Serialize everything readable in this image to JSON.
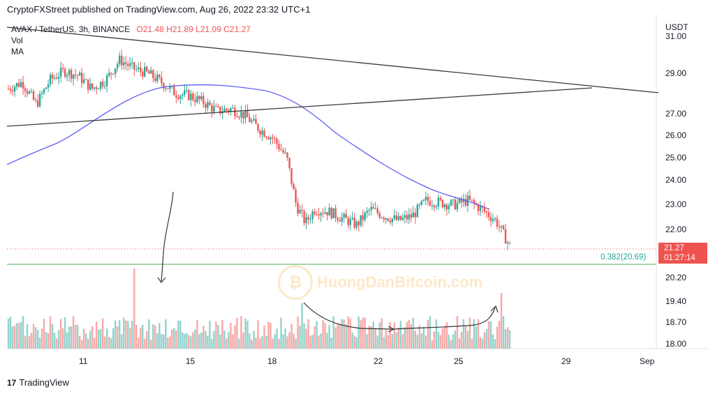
{
  "header": {
    "published": "CryptoFXStreet published on TradingView.com, Aug 26, 2022 23:32 UTC+1"
  },
  "legend": {
    "symbol": "AVAX / TetherUS, 3h, BINANCE",
    "open": "O21.48",
    "high": "H21.89",
    "low": "L21.09",
    "close": "C21.27",
    "vol": "Vol",
    "ma": "MA"
  },
  "axis": {
    "currency": "USDT",
    "price_labels": [
      "31.00",
      "29.00",
      "27.00",
      "26.00",
      "25.00",
      "24.00",
      "23.00",
      "22.00",
      "20.20",
      "19.40",
      "18.70",
      "18.00"
    ],
    "date_labels": [
      "11",
      "15",
      "18",
      "22",
      "25",
      "29",
      "Sep"
    ]
  },
  "price_tag": {
    "price": "21.27",
    "countdown": "01:27:14"
  },
  "fib": {
    "label": "0.382(20.69)"
  },
  "watermark": {
    "text": "HuongDanBitcoin.com"
  },
  "brand": {
    "name": "TradingView",
    "logo": "17"
  },
  "colors": {
    "up": "#26a69a",
    "down": "#ef5350",
    "ma": "#5b5ef4",
    "trend": "#131722",
    "fib": "#4caf50"
  },
  "chart_data": {
    "type": "candlestick",
    "symbol": "AVAX / TetherUS",
    "interval": "3h",
    "exchange": "BINANCE",
    "ylim": [
      18.0,
      31.0
    ],
    "y_ticks": [
      22,
      23,
      24,
      25,
      26,
      27,
      29
    ],
    "x_ticks": [
      "11",
      "15",
      "18",
      "22",
      "25",
      "29",
      "Sep"
    ],
    "current_price": 21.27,
    "fib_0382": 20.69,
    "ohlc_last": {
      "open": 21.48,
      "high": 21.89,
      "low": 21.09,
      "close": 21.27
    },
    "close_path": [
      {
        "x": 0,
        "close": 28.3
      },
      {
        "x": 3,
        "close": 28.6
      },
      {
        "x": 6,
        "close": 27.6
      },
      {
        "x": 9,
        "close": 28.7
      },
      {
        "x": 12,
        "close": 29.1
      },
      {
        "x": 15,
        "close": 28.9
      },
      {
        "x": 18,
        "close": 28.3
      },
      {
        "x": 21,
        "close": 28.7
      },
      {
        "x": 24,
        "close": 29.6
      },
      {
        "x": 27,
        "close": 29.2
      },
      {
        "x": 30,
        "close": 29.0
      },
      {
        "x": 33,
        "close": 28.6
      },
      {
        "x": 36,
        "close": 28.1
      },
      {
        "x": 39,
        "close": 28.0
      },
      {
        "x": 42,
        "close": 27.7
      },
      {
        "x": 45,
        "close": 27.3
      },
      {
        "x": 48,
        "close": 27.4
      },
      {
        "x": 51,
        "close": 27.1
      },
      {
        "x": 54,
        "close": 26.5
      },
      {
        "x": 57,
        "close": 26.1
      },
      {
        "x": 60,
        "close": 25.2
      },
      {
        "x": 62,
        "close": 23.1
      },
      {
        "x": 64,
        "close": 22.3
      },
      {
        "x": 66,
        "close": 22.9
      },
      {
        "x": 69,
        "close": 22.8
      },
      {
        "x": 72,
        "close": 22.5
      },
      {
        "x": 75,
        "close": 22.2
      },
      {
        "x": 78,
        "close": 22.9
      },
      {
        "x": 81,
        "close": 22.6
      },
      {
        "x": 84,
        "close": 22.4
      },
      {
        "x": 87,
        "close": 22.6
      },
      {
        "x": 90,
        "close": 23.3
      },
      {
        "x": 93,
        "close": 23.2
      },
      {
        "x": 96,
        "close": 23.1
      },
      {
        "x": 99,
        "close": 23.3
      },
      {
        "x": 102,
        "close": 22.9
      },
      {
        "x": 105,
        "close": 22.4
      },
      {
        "x": 108,
        "close": 21.27
      }
    ]
  }
}
